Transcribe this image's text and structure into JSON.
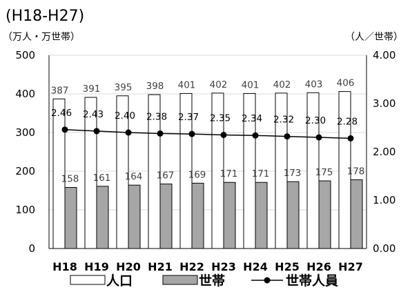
{
  "chart_data": {
    "type": "bar",
    "title": "(H18-H27)",
    "categories": [
      "H18",
      "H19",
      "H20",
      "H21",
      "H22",
      "H23",
      "H24",
      "H25",
      "H26",
      "H27"
    ],
    "series": [
      {
        "name": "人口",
        "kind": "bar",
        "axis": "left",
        "color": "#ffffff",
        "values": [
          387,
          391,
          395,
          398,
          401,
          402,
          401,
          402,
          403,
          406
        ]
      },
      {
        "name": "世帯",
        "kind": "bar",
        "axis": "left",
        "color": "#a6a6a6",
        "values": [
          158,
          161,
          164,
          167,
          169,
          171,
          171,
          173,
          175,
          178
        ]
      },
      {
        "name": "世帯人員",
        "kind": "line",
        "axis": "right",
        "color": "#000000",
        "values": [
          2.46,
          2.43,
          2.4,
          2.38,
          2.37,
          2.35,
          2.34,
          2.32,
          2.3,
          2.28
        ]
      }
    ],
    "y_left": {
      "label": "（万人・万世帯）",
      "ylim": [
        0,
        500
      ],
      "ticks": [
        "0",
        "100",
        "200",
        "300",
        "400",
        "500"
      ]
    },
    "y_right": {
      "label": "（人／世帯）",
      "ylim": [
        0,
        4
      ],
      "ticks": [
        "0.00",
        "1.00",
        "2.00",
        "3.00",
        "4.00"
      ]
    },
    "grid": true,
    "legend": "bottom"
  }
}
